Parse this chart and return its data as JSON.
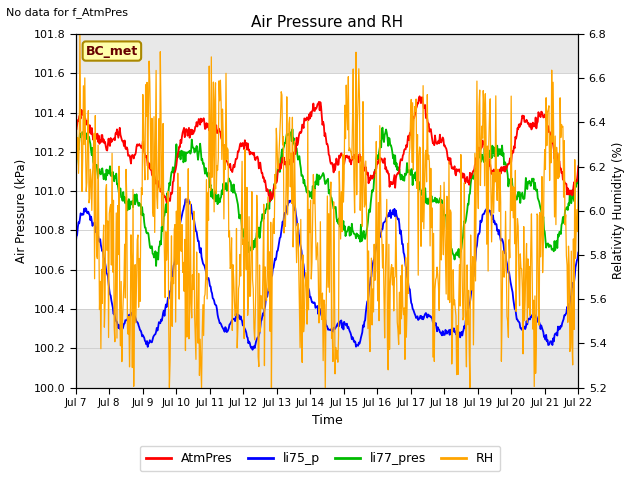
{
  "title": "Air Pressure and RH",
  "top_left_text": "No data for f_AtmPres",
  "annotation_text": "BC_met",
  "xlabel": "Time",
  "ylabel_left": "Air Pressure (kPa)",
  "ylabel_right": "Relativity Humidity (%)",
  "ylim_left": [
    100.0,
    101.8
  ],
  "ylim_right": [
    5.2,
    6.8
  ],
  "yticks_left": [
    100.0,
    100.2,
    100.4,
    100.6,
    100.8,
    101.0,
    101.2,
    101.4,
    101.6,
    101.8
  ],
  "yticks_right": [
    5.2,
    5.4,
    5.6,
    5.8,
    6.0,
    6.2,
    6.4,
    6.6,
    6.8
  ],
  "xtick_labels": [
    "Jul 7",
    "Jul 8",
    "Jul 9",
    "Jul 10",
    "Jul 11",
    "Jul 12",
    "Jul 13",
    "Jul 14",
    "Jul 15",
    "Jul 16",
    "Jul 17",
    "Jul 18",
    "Jul 19",
    "Jul 20",
    "Jul 21",
    "Jul 22"
  ],
  "colors": {
    "AtmPres": "#FF0000",
    "li75_p": "#0000FF",
    "li77_pres": "#00BB00",
    "RH": "#FFA500"
  },
  "legend_labels": [
    "AtmPres",
    "li75_p",
    "li77_pres",
    "RH"
  ],
  "shade_ylim": [
    100.4,
    101.6
  ],
  "background_color": "#FFFFFF",
  "plot_bg_color": "#E8E8E8"
}
